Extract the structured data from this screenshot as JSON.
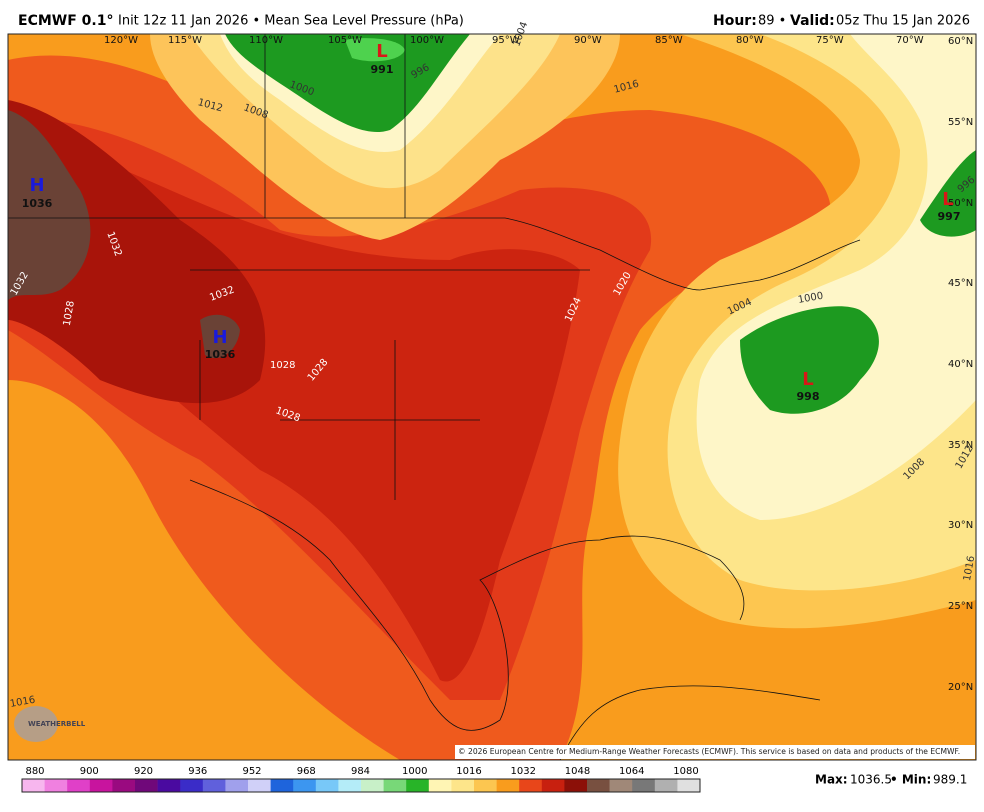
{
  "header": {
    "model": "ECMWF 0.1°",
    "run": "Init 12z 11 Jan 2026 • Mean Sea Level Pressure (hPa)",
    "hour_label": "Hour:",
    "hour": "89 •",
    "valid_label": "Valid:",
    "valid": "05z Thu 15 Jan 2026"
  },
  "map": {
    "longitudes": [
      "120°W",
      "115°W",
      "110°W",
      "105°W",
      "100°W",
      "95°W",
      "90°W",
      "85°W",
      "80°W",
      "75°W",
      "70°W"
    ],
    "latitudes": [
      "60°N",
      "55°N",
      "50°N",
      "45°N",
      "40°N",
      "35°N",
      "30°N",
      "25°N",
      "20°N"
    ],
    "centers": [
      {
        "type": "H",
        "value": "1036"
      },
      {
        "type": "H",
        "value": "1036"
      },
      {
        "type": "L",
        "value": "991"
      },
      {
        "type": "L",
        "value": "997"
      },
      {
        "type": "L",
        "value": "998"
      }
    ],
    "contour_labels": [
      "1016",
      "1012",
      "1008",
      "1000",
      "996",
      "1004",
      "1032",
      "1032",
      "1028",
      "1032",
      "1028",
      "1028",
      "1028",
      "1024",
      "1020",
      "1004",
      "1000",
      "1008",
      "1012",
      "1016",
      "996",
      "1016"
    ],
    "logo": "WEATHERBELL",
    "copyright": "© 2026 European Centre for Medium-Range Weather Forecasts (ECMWF). This service is based on data and products of the ECMWF."
  },
  "colorbar": {
    "labels": [
      880,
      900,
      920,
      936,
      952,
      968,
      984,
      1000,
      1016,
      1032,
      1048,
      1064,
      1080
    ],
    "colors": [
      "#f7b6ee",
      "#f080e0",
      "#e040c8",
      "#c8149e",
      "#9a0a80",
      "#70087a",
      "#4a0aa0",
      "#3a2cc8",
      "#6060dc",
      "#a0a0ec",
      "#d0d0f8",
      "#1e64dc",
      "#3c96f0",
      "#78c8f8",
      "#b4ecf8",
      "#c8f0c8",
      "#78d878",
      "#28b428",
      "#fff5b4",
      "#fde58a",
      "#fcc650",
      "#f99c1d",
      "#e8461a",
      "#c8200f",
      "#8c1008",
      "#785040",
      "#a08878",
      "#787878",
      "#b0b0b0",
      "#e0e0e0"
    ]
  },
  "footer": {
    "max_label": "Max:",
    "max": 1036.5,
    "min_label": "• Min:",
    "min": 989.1
  }
}
